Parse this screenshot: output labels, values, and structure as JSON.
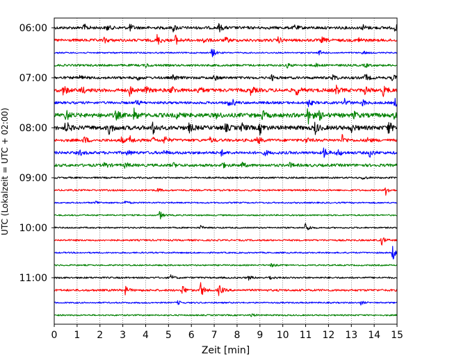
{
  "chart_data": {
    "type": "line",
    "title": "",
    "xlabel": "Zeit  [min]",
    "ylabel": "UTC (Lokalzeit = UTC + 02:00)",
    "xlim": [
      0,
      15
    ],
    "x_ticks": [
      "0",
      "1",
      "2",
      "3",
      "4",
      "5",
      "6",
      "7",
      "8",
      "9",
      "10",
      "11",
      "12",
      "13",
      "14",
      "15"
    ],
    "y_ticks": [
      "06:00",
      "07:00",
      "08:00",
      "09:00",
      "10:00",
      "11:00"
    ],
    "grid": "vertical dotted",
    "line_colors": [
      "#000000",
      "#ff0000",
      "#0000ff",
      "#008000"
    ],
    "traces": [
      {
        "start": "06:00",
        "color": "#000000",
        "noise": 2.0,
        "events": [
          {
            "t": 1.3,
            "a": 5
          },
          {
            "t": 2.3,
            "a": 4
          },
          {
            "t": 3.3,
            "a": 5
          },
          {
            "t": 5.2,
            "a": 5
          },
          {
            "t": 7.2,
            "a": 6
          },
          {
            "t": 10.5,
            "a": 4
          },
          {
            "t": 13.5,
            "a": 4
          },
          {
            "t": 14.9,
            "a": 5
          }
        ]
      },
      {
        "start": "06:15",
        "color": "#ff0000",
        "noise": 2.0,
        "events": [
          {
            "t": 2.2,
            "a": 4
          },
          {
            "t": 4.5,
            "a": 8
          },
          {
            "t": 5.3,
            "a": 7
          },
          {
            "t": 6.5,
            "a": 5
          },
          {
            "t": 7.5,
            "a": 4
          },
          {
            "t": 9.8,
            "a": 4
          },
          {
            "t": 11.7,
            "a": 4
          },
          {
            "t": 13.3,
            "a": 4
          }
        ]
      },
      {
        "start": "06:30",
        "color": "#0000ff",
        "noise": 1.0,
        "events": [
          {
            "t": 6.9,
            "a": 8
          },
          {
            "t": 11.6,
            "a": 4
          },
          {
            "t": 13.5,
            "a": 3
          }
        ]
      },
      {
        "start": "06:45",
        "color": "#008000",
        "noise": 1.5,
        "events": [
          {
            "t": 4.0,
            "a": 3
          },
          {
            "t": 10.2,
            "a": 3
          },
          {
            "t": 11.4,
            "a": 3
          },
          {
            "t": 13.6,
            "a": 3
          }
        ]
      },
      {
        "start": "07:00",
        "color": "#000000",
        "noise": 1.8,
        "events": [
          {
            "t": 1.1,
            "a": 4
          },
          {
            "t": 3.6,
            "a": 4
          },
          {
            "t": 5.2,
            "a": 4
          },
          {
            "t": 7.0,
            "a": 4
          },
          {
            "t": 9.5,
            "a": 4
          },
          {
            "t": 12.2,
            "a": 5
          },
          {
            "t": 13.6,
            "a": 6
          },
          {
            "t": 14.8,
            "a": 5
          }
        ]
      },
      {
        "start": "07:15",
        "color": "#ff0000",
        "noise": 2.5,
        "events": [
          {
            "t": 0.4,
            "a": 8
          },
          {
            "t": 1.2,
            "a": 5
          },
          {
            "t": 3.3,
            "a": 7
          },
          {
            "t": 4.0,
            "a": 5
          },
          {
            "t": 5.1,
            "a": 7
          },
          {
            "t": 6.3,
            "a": 6
          },
          {
            "t": 8.6,
            "a": 6
          },
          {
            "t": 10.6,
            "a": 7
          },
          {
            "t": 12.3,
            "a": 8
          },
          {
            "t": 13.6,
            "a": 6
          },
          {
            "t": 14.4,
            "a": 8
          }
        ]
      },
      {
        "start": "07:30",
        "color": "#0000ff",
        "noise": 1.8,
        "events": [
          {
            "t": 3.6,
            "a": 4
          },
          {
            "t": 7.6,
            "a": 4
          },
          {
            "t": 7.8,
            "a": 4
          },
          {
            "t": 11.1,
            "a": 6
          },
          {
            "t": 12.7,
            "a": 7
          },
          {
            "t": 13.5,
            "a": 5
          },
          {
            "t": 14.9,
            "a": 6
          }
        ]
      },
      {
        "start": "07:45",
        "color": "#008000",
        "noise": 3.0,
        "events": [
          {
            "t": 0.5,
            "a": 9
          },
          {
            "t": 2.7,
            "a": 7
          },
          {
            "t": 3.5,
            "a": 9
          },
          {
            "t": 5.3,
            "a": 5
          },
          {
            "t": 7.1,
            "a": 4
          },
          {
            "t": 9.1,
            "a": 6
          },
          {
            "t": 11.1,
            "a": 14
          },
          {
            "t": 11.6,
            "a": 6
          },
          {
            "t": 13.1,
            "a": 5
          },
          {
            "t": 14.9,
            "a": 7
          }
        ]
      },
      {
        "start": "08:00",
        "color": "#000000",
        "noise": 3.0,
        "events": [
          {
            "t": 0.5,
            "a": 10
          },
          {
            "t": 2.4,
            "a": 9
          },
          {
            "t": 4.3,
            "a": 10
          },
          {
            "t": 5.9,
            "a": 6
          },
          {
            "t": 7.5,
            "a": 5
          },
          {
            "t": 8.2,
            "a": 6
          },
          {
            "t": 9.0,
            "a": 8
          },
          {
            "t": 11.4,
            "a": 9
          },
          {
            "t": 13.0,
            "a": 5
          },
          {
            "t": 14.6,
            "a": 11
          }
        ]
      },
      {
        "start": "08:15",
        "color": "#ff0000",
        "noise": 2.0,
        "events": [
          {
            "t": 1.3,
            "a": 6
          },
          {
            "t": 2.9,
            "a": 5
          },
          {
            "t": 3.3,
            "a": 6
          },
          {
            "t": 4.3,
            "a": 4
          },
          {
            "t": 4.8,
            "a": 7
          },
          {
            "t": 6.8,
            "a": 4
          },
          {
            "t": 8.9,
            "a": 6
          },
          {
            "t": 11.0,
            "a": 4
          },
          {
            "t": 12.6,
            "a": 7
          },
          {
            "t": 13.7,
            "a": 4
          }
        ]
      },
      {
        "start": "08:30",
        "color": "#0000ff",
        "noise": 2.0,
        "events": [
          {
            "t": 1.1,
            "a": 4
          },
          {
            "t": 3.2,
            "a": 4
          },
          {
            "t": 4.8,
            "a": 3
          },
          {
            "t": 7.3,
            "a": 4
          },
          {
            "t": 9.2,
            "a": 4
          },
          {
            "t": 11.8,
            "a": 8
          },
          {
            "t": 12.4,
            "a": 6
          },
          {
            "t": 13.8,
            "a": 6
          }
        ]
      },
      {
        "start": "08:45",
        "color": "#008000",
        "noise": 2.0,
        "events": [
          {
            "t": 2.2,
            "a": 4
          },
          {
            "t": 3.1,
            "a": 4
          },
          {
            "t": 5.2,
            "a": 3
          },
          {
            "t": 7.3,
            "a": 6
          },
          {
            "t": 8.2,
            "a": 4
          },
          {
            "t": 10.3,
            "a": 3
          }
        ]
      },
      {
        "start": "09:00",
        "color": "#000000",
        "noise": 1.2,
        "events": [
          {
            "t": 13.5,
            "a": 3
          }
        ]
      },
      {
        "start": "09:15",
        "color": "#ff0000",
        "noise": 1.2,
        "events": [
          {
            "t": 4.5,
            "a": 3
          },
          {
            "t": 14.5,
            "a": 7
          }
        ]
      },
      {
        "start": "09:30",
        "color": "#0000ff",
        "noise": 1.0,
        "events": [
          {
            "t": 1.8,
            "a": 3
          },
          {
            "t": 3.1,
            "a": 3
          }
        ]
      },
      {
        "start": "09:45",
        "color": "#008000",
        "noise": 1.0,
        "events": [
          {
            "t": 4.6,
            "a": 7
          }
        ]
      },
      {
        "start": "10:00",
        "color": "#000000",
        "noise": 1.0,
        "events": [
          {
            "t": 6.4,
            "a": 3
          },
          {
            "t": 11.0,
            "a": 9
          }
        ]
      },
      {
        "start": "10:15",
        "color": "#ff0000",
        "noise": 1.2,
        "events": [
          {
            "t": 14.3,
            "a": 8
          }
        ]
      },
      {
        "start": "10:30",
        "color": "#0000ff",
        "noise": 1.0,
        "events": [
          {
            "t": 14.8,
            "a": 12
          }
        ]
      },
      {
        "start": "10:45",
        "color": "#008000",
        "noise": 1.0,
        "events": [
          {
            "t": 9.5,
            "a": 3
          }
        ]
      },
      {
        "start": "11:00",
        "color": "#000000",
        "noise": 1.2,
        "events": [
          {
            "t": 5.1,
            "a": 4
          },
          {
            "t": 8.5,
            "a": 3
          },
          {
            "t": 9.4,
            "a": 3
          }
        ]
      },
      {
        "start": "11:15",
        "color": "#ff0000",
        "noise": 1.5,
        "events": [
          {
            "t": 3.1,
            "a": 6
          },
          {
            "t": 5.6,
            "a": 8
          },
          {
            "t": 6.4,
            "a": 12
          },
          {
            "t": 7.2,
            "a": 9
          }
        ]
      },
      {
        "start": "11:30",
        "color": "#0000ff",
        "noise": 1.0,
        "events": [
          {
            "t": 5.4,
            "a": 3
          },
          {
            "t": 13.4,
            "a": 3
          }
        ]
      },
      {
        "start": "11:45",
        "color": "#008000",
        "noise": 1.0,
        "events": [
          {
            "t": 8.6,
            "a": 3
          }
        ]
      }
    ]
  }
}
